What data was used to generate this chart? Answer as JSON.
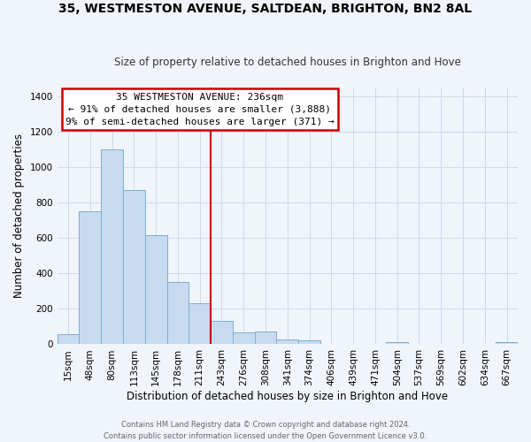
{
  "title": "35, WESTMESTON AVENUE, SALTDEAN, BRIGHTON, BN2 8AL",
  "subtitle": "Size of property relative to detached houses in Brighton and Hove",
  "xlabel": "Distribution of detached houses by size in Brighton and Hove",
  "ylabel": "Number of detached properties",
  "bar_labels": [
    "15sqm",
    "48sqm",
    "80sqm",
    "113sqm",
    "145sqm",
    "178sqm",
    "211sqm",
    "243sqm",
    "276sqm",
    "308sqm",
    "341sqm",
    "374sqm",
    "406sqm",
    "439sqm",
    "471sqm",
    "504sqm",
    "537sqm",
    "569sqm",
    "602sqm",
    "634sqm",
    "667sqm"
  ],
  "bar_values": [
    55,
    750,
    1100,
    870,
    615,
    350,
    230,
    130,
    65,
    70,
    25,
    20,
    0,
    0,
    0,
    10,
    0,
    0,
    0,
    0,
    10
  ],
  "bar_color": "#c8daf0",
  "bar_edge_color": "#7bafd4",
  "vline_color": "#cc0000",
  "vline_x": 7.0,
  "ylim": [
    0,
    1450
  ],
  "yticks": [
    0,
    200,
    400,
    600,
    800,
    1000,
    1200,
    1400
  ],
  "annotation_title": "35 WESTMESTON AVENUE: 236sqm",
  "annotation_line1": "← 91% of detached houses are smaller (3,888)",
  "annotation_line2": "9% of semi-detached houses are larger (371) →",
  "annotation_box_color": "#ffffff",
  "annotation_border_color": "#cc0000",
  "footer_line1": "Contains HM Land Registry data © Crown copyright and database right 2024.",
  "footer_line2": "Contains public sector information licensed under the Open Government Licence v3.0.",
  "bg_color": "#f0f4fb",
  "grid_color": "#d0d8e8",
  "title_fontsize": 10,
  "subtitle_fontsize": 8.5,
  "xlabel_fontsize": 8.5,
  "ylabel_fontsize": 8.5,
  "tick_fontsize": 7.5,
  "annotation_fontsize": 8,
  "footer_fontsize": 6
}
